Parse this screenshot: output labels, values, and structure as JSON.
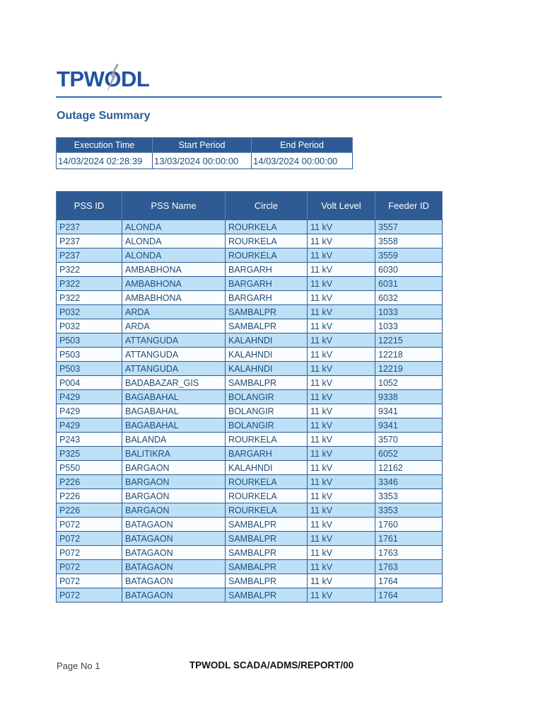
{
  "logo": {
    "left": "TPW",
    "o": "O",
    "right": "DL",
    "bolt_icon": "lightning-bolt-icon",
    "color": "#2351A5"
  },
  "page": {
    "title": "Outage Summary"
  },
  "exec_table": {
    "headers": [
      "Execution Time",
      "Start Period",
      "End Period"
    ],
    "values": [
      "14/03/2024 02:28:39",
      "13/03/2024 00:00:00",
      "14/03/2024 00:00:00"
    ]
  },
  "outage_table": {
    "headers": [
      "PSS ID",
      "PSS Name",
      "Circle",
      "Volt Level",
      "Feeder ID"
    ],
    "rows": [
      [
        "P237",
        "ALONDA",
        "ROURKELA",
        "11 kV",
        "3557"
      ],
      [
        "P237",
        "ALONDA",
        "ROURKELA",
        "11 kV",
        "3558"
      ],
      [
        "P237",
        "ALONDA",
        "ROURKELA",
        "11 kV",
        "3559"
      ],
      [
        "P322",
        "AMBABHONA",
        "BARGARH",
        "11 kV",
        "6030"
      ],
      [
        "P322",
        "AMBABHONA",
        "BARGARH",
        "11 kV",
        "6031"
      ],
      [
        "P322",
        "AMBABHONA",
        "BARGARH",
        "11 kV",
        "6032"
      ],
      [
        "P032",
        "ARDA",
        "SAMBALPR",
        "11 kV",
        "1033"
      ],
      [
        "P032",
        "ARDA",
        "SAMBALPR",
        "11 kV",
        "1033"
      ],
      [
        "P503",
        "ATTANGUDA",
        "KALAHNDI",
        "11 kV",
        "12215"
      ],
      [
        "P503",
        "ATTANGUDA",
        "KALAHNDI",
        "11 kV",
        "12218"
      ],
      [
        "P503",
        "ATTANGUDA",
        "KALAHNDI",
        "11 kV",
        "12219"
      ],
      [
        "P004",
        "BADABAZAR_GIS",
        "SAMBALPR",
        "11 kV",
        "1052"
      ],
      [
        "P429",
        "BAGABAHAL",
        "BOLANGIR",
        "11 kV",
        "9338"
      ],
      [
        "P429",
        "BAGABAHAL",
        "BOLANGIR",
        "11 kV",
        "9341"
      ],
      [
        "P429",
        "BAGABAHAL",
        "BOLANGIR",
        "11 kV",
        "9341"
      ],
      [
        "P243",
        "BALANDA",
        "ROURKELA",
        "11 kV",
        "3570"
      ],
      [
        "P325",
        "BALITIKRA",
        "BARGARH",
        "11 kV",
        "6052"
      ],
      [
        "P550",
        "BARGAON",
        "KALAHNDI",
        "11 kV",
        "12162"
      ],
      [
        "P226",
        "BARGAON",
        "ROURKELA",
        "11 kV",
        "3346"
      ],
      [
        "P226",
        "BARGAON",
        "ROURKELA",
        "11 kV",
        "3353"
      ],
      [
        "P226",
        "BARGAON",
        "ROURKELA",
        "11 kV",
        "3353"
      ],
      [
        "P072",
        "BATAGAON",
        "SAMBALPR",
        "11 kV",
        "1760"
      ],
      [
        "P072",
        "BATAGAON",
        "SAMBALPR",
        "11 kV",
        "1761"
      ],
      [
        "P072",
        "BATAGAON",
        "SAMBALPR",
        "11 kV",
        "1763"
      ],
      [
        "P072",
        "BATAGAON",
        "SAMBALPR",
        "11 kV",
        "1763"
      ],
      [
        "P072",
        "BATAGAON",
        "SAMBALPR",
        "11 kV",
        "1764"
      ],
      [
        "P072",
        "BATAGAON",
        "SAMBALPR",
        "11 kV",
        "1764"
      ]
    ]
  },
  "footer": {
    "page_label": "Page No 1",
    "doc_ref": "TPWODL SCADA/ADMS/REPORT/00"
  },
  "colors": {
    "header_bg": "#2E5B94",
    "row_alt": "#BEE0F7",
    "row_base": "#FAFDFF",
    "cell_text": "#1E4E79",
    "accent_blue": "#2351A5"
  }
}
